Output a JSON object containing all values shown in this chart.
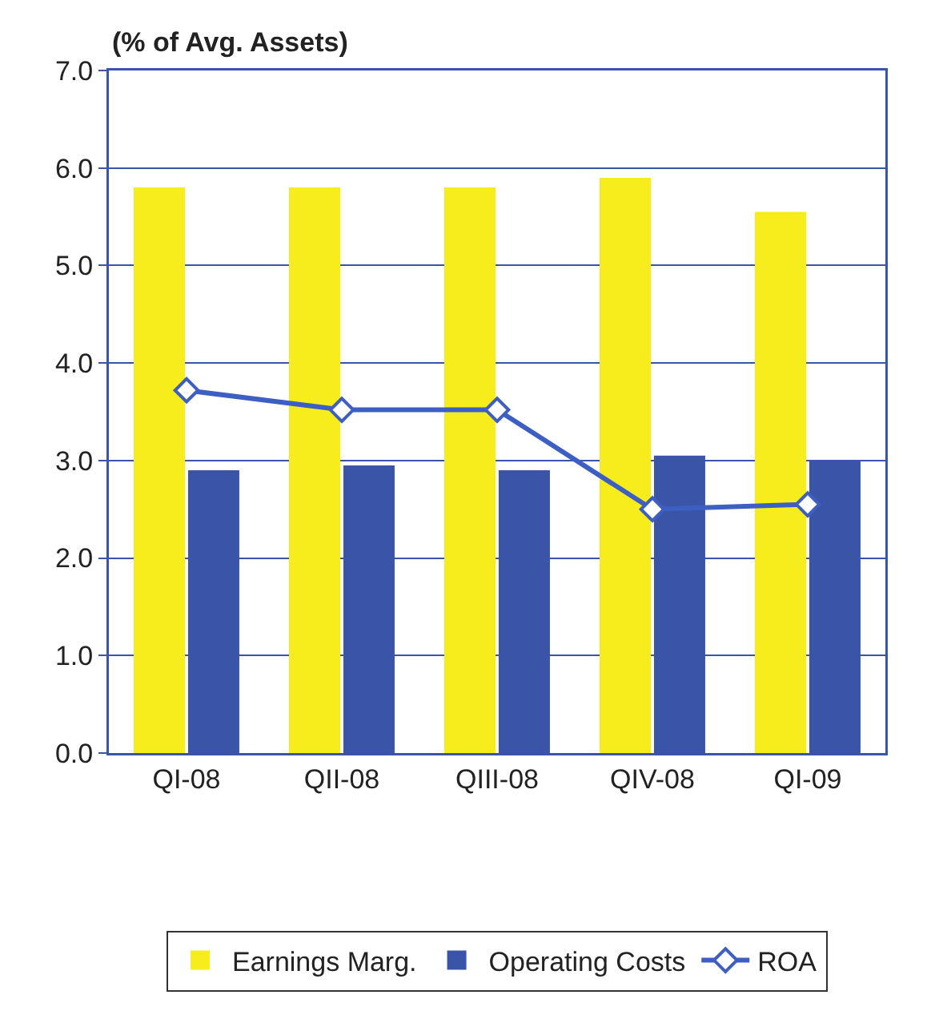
{
  "chart_data": {
    "type": "bar",
    "ylabel": "(% of Avg. Assets)",
    "categories": [
      "QI-08",
      "QII-08",
      "QIII-08",
      "QIV-08",
      "QI-09"
    ],
    "series": [
      {
        "name": "Earnings Marg.",
        "color": "#f7ec1c",
        "values": [
          5.8,
          5.8,
          5.8,
          5.9,
          5.55
        ]
      },
      {
        "name": "Operating Costs",
        "color": "#3a55a8",
        "values": [
          2.9,
          2.95,
          2.9,
          3.05,
          3.0
        ]
      },
      {
        "name": "ROA",
        "type": "line",
        "color": "#3d5fc4",
        "marker": "diamond",
        "values": [
          3.72,
          3.52,
          3.52,
          2.5,
          2.55
        ]
      }
    ],
    "ylim": [
      0,
      7
    ],
    "yticks": [
      {
        "value": 0,
        "label": "0.0"
      },
      {
        "value": 1,
        "label": "1.0"
      },
      {
        "value": 2,
        "label": "2.0"
      },
      {
        "value": 3,
        "label": "3.0"
      },
      {
        "value": 4,
        "label": "4.0"
      },
      {
        "value": 5,
        "label": "5.0"
      },
      {
        "value": 6,
        "label": "6.0"
      },
      {
        "value": 7,
        "label": "7.0"
      }
    ],
    "grid": "y",
    "legend": "bottom"
  }
}
